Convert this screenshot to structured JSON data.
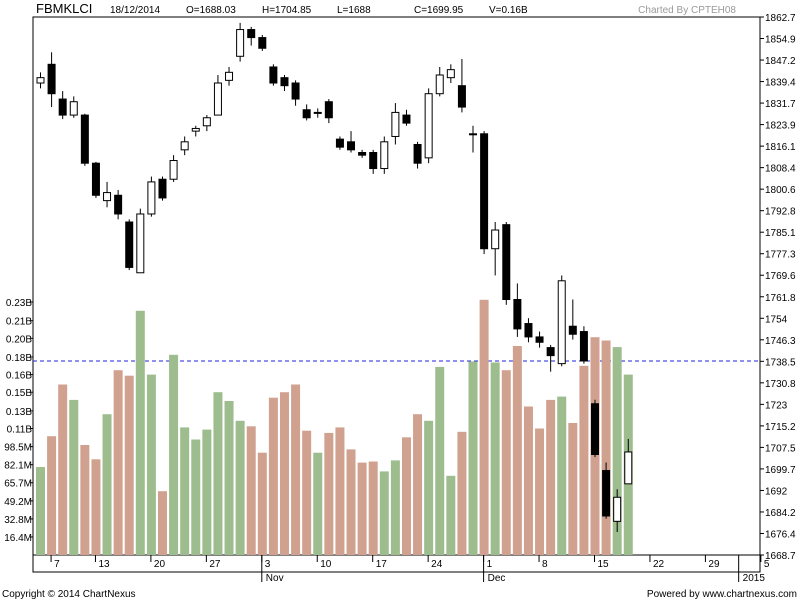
{
  "header": {
    "symbol": "FBMKLCI",
    "date": "18/12/2014",
    "open": "O=1688.03",
    "high": "H=1704.85",
    "low": "L=1688",
    "close": "C=1699.95",
    "volume": "V=0.16B",
    "credit": "Charted By CPTEH08"
  },
  "footer": {
    "copyright": "Copyright © 2014 ChartNexus",
    "powered": "Powered by www.chartnexus.com"
  },
  "colors": {
    "up_volume": "#9dbd8e",
    "down_volume": "#d1a190",
    "candle": "#000000",
    "reference_line": "#2020e0"
  },
  "chart_data": {
    "type": "candlestick",
    "price_axis": {
      "min": 1661.4,
      "max": 1862.7,
      "ticks": [
        "1862.7",
        "1854.9",
        "1847.2",
        "1839.4",
        "1831.7",
        "1823.9",
        "1816.1",
        "1808.4",
        "1800.6",
        "1792.8",
        "1785.1",
        "1777.3",
        "1769.6",
        "1761.8",
        "1754",
        "1746.3",
        "1738.5",
        "1730.8",
        "1723",
        "1715.2",
        "1707.5",
        "1699.7",
        "1692",
        "1684.2",
        "1676.4",
        "1668.7"
      ]
    },
    "volume_axis": {
      "unit": "M",
      "min": 0,
      "max": 245,
      "ticks": [
        {
          "label": "0.23B",
          "v": 230
        },
        {
          "label": "0.21B",
          "v": 213
        },
        {
          "label": "0.20B",
          "v": 197
        },
        {
          "label": "0.18B",
          "v": 180
        },
        {
          "label": "0.16B",
          "v": 164
        },
        {
          "label": "0.15B",
          "v": 148
        },
        {
          "label": "0.13B",
          "v": 131
        },
        {
          "label": "0.11B",
          "v": 115
        },
        {
          "label": "98.5M",
          "v": 98.5
        },
        {
          "label": "82.1M",
          "v": 82.1
        },
        {
          "label": "65.7M",
          "v": 65.7
        },
        {
          "label": "49.2M",
          "v": 49.2
        },
        {
          "label": "32.8M",
          "v": 32.8
        },
        {
          "label": "16.4M",
          "v": 16.4
        }
      ]
    },
    "reference_line": 1734.0,
    "x_labels": [
      {
        "label": "7",
        "i": 1
      },
      {
        "label": "13",
        "i": 5
      },
      {
        "label": "20",
        "i": 10
      },
      {
        "label": "27",
        "i": 15
      },
      {
        "label": "3",
        "i": 20
      },
      {
        "label": "10",
        "i": 25
      },
      {
        "label": "17",
        "i": 30
      },
      {
        "label": "24",
        "i": 35
      },
      {
        "label": "1",
        "i": 40
      },
      {
        "label": "8",
        "i": 45
      },
      {
        "label": "15",
        "i": 50
      },
      {
        "label": "22",
        "i": 55
      },
      {
        "label": "29",
        "i": 60
      },
      {
        "label": "5",
        "i": 65
      }
    ],
    "month_labels": [
      {
        "label": "Nov",
        "i": 20
      },
      {
        "label": "Dec",
        "i": 40
      },
      {
        "label": "2015",
        "i": 63
      }
    ],
    "candles": [
      {
        "o": 1838.0,
        "h": 1842.0,
        "l": 1836.0,
        "c": 1840.0,
        "v": 80
      },
      {
        "o": 1845.0,
        "h": 1849.5,
        "l": 1829.0,
        "c": 1834.0,
        "v": 108
      },
      {
        "o": 1832.0,
        "h": 1835.0,
        "l": 1824.5,
        "c": 1826.0,
        "v": 155
      },
      {
        "o": 1826.0,
        "h": 1833.0,
        "l": 1825.0,
        "c": 1831.0,
        "v": 141
      },
      {
        "o": 1826.0,
        "h": 1826.5,
        "l": 1807.0,
        "c": 1808.0,
        "v": 100
      },
      {
        "o": 1808.0,
        "h": 1808.5,
        "l": 1795.0,
        "c": 1796.0,
        "v": 87
      },
      {
        "o": 1794.0,
        "h": 1801.0,
        "l": 1791.5,
        "c": 1797.0,
        "v": 128
      },
      {
        "o": 1796.0,
        "h": 1798.0,
        "l": 1787.0,
        "c": 1789.0,
        "v": 168
      },
      {
        "o": 1786.0,
        "h": 1787.0,
        "l": 1768.0,
        "c": 1769.0,
        "v": 163
      },
      {
        "o": 1767.0,
        "h": 1791.0,
        "l": 1767.0,
        "c": 1789.0,
        "v": 222
      },
      {
        "o": 1789.0,
        "h": 1803.0,
        "l": 1788.0,
        "c": 1801.0,
        "v": 164
      },
      {
        "o": 1802.0,
        "h": 1803.0,
        "l": 1794.0,
        "c": 1795.0,
        "v": 58
      },
      {
        "o": 1802.0,
        "h": 1811.0,
        "l": 1801.0,
        "c": 1809.0,
        "v": 182
      },
      {
        "o": 1813.0,
        "h": 1818.0,
        "l": 1811.0,
        "c": 1816.0,
        "v": 116
      },
      {
        "o": 1820.0,
        "h": 1822.0,
        "l": 1818.0,
        "c": 1821.0,
        "v": 105
      },
      {
        "o": 1822.0,
        "h": 1826.0,
        "l": 1820.0,
        "c": 1825.0,
        "v": 114
      },
      {
        "o": 1826.0,
        "h": 1841.0,
        "l": 1826.0,
        "c": 1838.0,
        "v": 148
      },
      {
        "o": 1839.0,
        "h": 1844.0,
        "l": 1837.0,
        "c": 1842.0,
        "v": 140
      },
      {
        "o": 1848.0,
        "h": 1860.5,
        "l": 1846.0,
        "c": 1858.0,
        "v": 122
      },
      {
        "o": 1858.0,
        "h": 1859.0,
        "l": 1852.0,
        "c": 1855.0,
        "v": 117
      },
      {
        "o": 1855.0,
        "h": 1856.0,
        "l": 1850.0,
        "c": 1851.0,
        "v": 93
      },
      {
        "o": 1844.0,
        "h": 1845.0,
        "l": 1837.0,
        "c": 1838.0,
        "v": 143
      },
      {
        "o": 1840.0,
        "h": 1841.0,
        "l": 1835.0,
        "c": 1837.0,
        "v": 148
      },
      {
        "o": 1838.0,
        "h": 1839.0,
        "l": 1829.5,
        "c": 1832.0,
        "v": 155
      },
      {
        "o": 1828.0,
        "h": 1830.0,
        "l": 1824.0,
        "c": 1825.0,
        "v": 113
      },
      {
        "o": 1827.0,
        "h": 1828.5,
        "l": 1825.0,
        "c": 1827.0,
        "v": 93
      },
      {
        "o": 1831.0,
        "h": 1832.0,
        "l": 1823.0,
        "c": 1825.0,
        "v": 111
      },
      {
        "o": 1817.0,
        "h": 1818.0,
        "l": 1813.0,
        "c": 1814.0,
        "v": 116
      },
      {
        "o": 1816.0,
        "h": 1820.0,
        "l": 1812.0,
        "c": 1813.0,
        "v": 96
      },
      {
        "o": 1812.0,
        "h": 1813.0,
        "l": 1810.0,
        "c": 1811.0,
        "v": 84
      },
      {
        "o": 1812.0,
        "h": 1813.0,
        "l": 1804.0,
        "c": 1806.0,
        "v": 85
      },
      {
        "o": 1806.0,
        "h": 1818.0,
        "l": 1804.0,
        "c": 1816.0,
        "v": 76
      },
      {
        "o": 1818.0,
        "h": 1830.5,
        "l": 1815.0,
        "c": 1827.0,
        "v": 86
      },
      {
        "o": 1826.0,
        "h": 1828.0,
        "l": 1822.0,
        "c": 1823.0,
        "v": 107
      },
      {
        "o": 1815.0,
        "h": 1816.0,
        "l": 1806.0,
        "c": 1808.0,
        "v": 128
      },
      {
        "o": 1810.0,
        "h": 1836.0,
        "l": 1808.0,
        "c": 1834.0,
        "v": 122
      },
      {
        "o": 1834.0,
        "h": 1844.0,
        "l": 1833.0,
        "c": 1841.0,
        "v": 171
      },
      {
        "o": 1840.0,
        "h": 1845.0,
        "l": 1838.0,
        "c": 1843.0,
        "v": 72
      },
      {
        "o": 1837.0,
        "h": 1847.0,
        "l": 1827.0,
        "c": 1829.0,
        "v": 112
      },
      {
        "o": 1819.0,
        "h": 1822.0,
        "l": 1812.0,
        "c": 1819.0,
        "v": 176
      },
      {
        "o": 1819.0,
        "h": 1820.0,
        "l": 1774.0,
        "c": 1776.0,
        "v": 232
      },
      {
        "o": 1776.0,
        "h": 1786.0,
        "l": 1766.0,
        "c": 1783.0,
        "v": 175
      },
      {
        "o": 1785.0,
        "h": 1786.0,
        "l": 1755.0,
        "c": 1757.0,
        "v": 168
      },
      {
        "o": 1757.0,
        "h": 1763.0,
        "l": 1743.0,
        "c": 1746.0,
        "v": 190
      },
      {
        "o": 1748.0,
        "h": 1750.0,
        "l": 1741.0,
        "c": 1743.0,
        "v": 135
      },
      {
        "o": 1743.0,
        "h": 1745.0,
        "l": 1739.0,
        "c": 1741.0,
        "v": 115
      },
      {
        "o": 1739.0,
        "h": 1740.0,
        "l": 1730.0,
        "c": 1736.0,
        "v": 141
      },
      {
        "o": 1733.0,
        "h": 1766.0,
        "l": 1732.0,
        "c": 1764.0,
        "v": 144
      },
      {
        "o": 1747.0,
        "h": 1757.0,
        "l": 1742.0,
        "c": 1744.0,
        "v": 120
      },
      {
        "o": 1745.0,
        "h": 1747.0,
        "l": 1733.0,
        "c": 1734.0,
        "v": 172
      },
      {
        "o": 1718.0,
        "h": 1719.5,
        "l": 1698.0,
        "c": 1699.0,
        "v": 198
      },
      {
        "o": 1693.0,
        "h": 1696.0,
        "l": 1675.0,
        "c": 1676.0,
        "v": 195
      },
      {
        "o": 1674.0,
        "h": 1686.0,
        "l": 1670.0,
        "c": 1683.0,
        "v": 189
      },
      {
        "o": 1688.03,
        "h": 1704.85,
        "l": 1688.0,
        "c": 1699.95,
        "v": 164
      }
    ]
  }
}
